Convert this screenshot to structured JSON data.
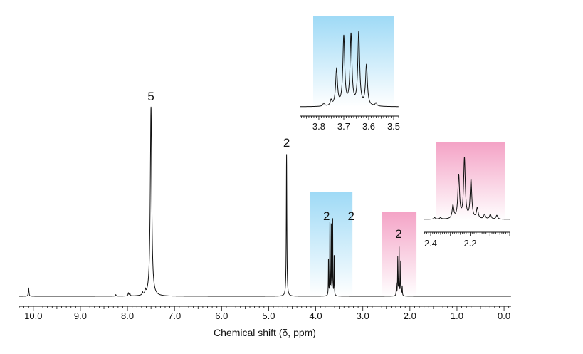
{
  "chart_data": [
    {
      "type": "line",
      "xlabel": "Chemical shift (δ, ppm)",
      "xlim": [
        10.3,
        -0.15
      ],
      "x_reversed": true,
      "x_ticks": [
        "10.0",
        "9.0",
        "8.0",
        "7.0",
        "6.0",
        "5.0",
        "4.0",
        "3.0",
        "2.0",
        "1.0",
        "0.0"
      ],
      "grid": false,
      "peaks": [
        {
          "ppm": 10.1,
          "intensity": 4.5,
          "width": 0.008
        },
        {
          "ppm": 8.25,
          "intensity": 0.8,
          "width": 0.01
        },
        {
          "ppm": 7.98,
          "intensity": 1.6,
          "width": 0.01
        },
        {
          "ppm": 7.95,
          "intensity": 1.2,
          "width": 0.01
        },
        {
          "ppm": 7.68,
          "intensity": 1.4,
          "width": 0.01
        },
        {
          "ppm": 7.62,
          "intensity": 2.2,
          "width": 0.01
        },
        {
          "ppm": 7.5,
          "intensity": 100,
          "width": 0.018
        },
        {
          "ppm": 4.62,
          "intensity": 75,
          "width": 0.007
        },
        {
          "ppm": 3.729,
          "intensity": 20,
          "width": 0.004
        },
        {
          "ppm": 3.7,
          "intensity": 38,
          "width": 0.004
        },
        {
          "ppm": 3.671,
          "intensity": 39,
          "width": 0.004
        },
        {
          "ppm": 3.64,
          "intensity": 40,
          "width": 0.004
        },
        {
          "ppm": 3.609,
          "intensity": 22,
          "width": 0.004
        },
        {
          "ppm": 2.287,
          "intensity": 6,
          "width": 0.005
        },
        {
          "ppm": 2.258,
          "intensity": 20,
          "width": 0.005
        },
        {
          "ppm": 2.229,
          "intensity": 26,
          "width": 0.005
        },
        {
          "ppm": 2.196,
          "intensity": 18,
          "width": 0.005
        },
        {
          "ppm": 2.164,
          "intensity": 5,
          "width": 0.005
        }
      ],
      "integration_labels": [
        {
          "ppm": 7.5,
          "label": "5"
        },
        {
          "ppm": 4.62,
          "label": "2"
        },
        {
          "ppm": 3.77,
          "label": "2"
        },
        {
          "ppm": 3.25,
          "label": "2"
        },
        {
          "ppm": 2.24,
          "label": "2"
        }
      ],
      "highlight_regions": [
        {
          "from": 4.12,
          "to": 3.22,
          "color": "#9fdaf6"
        },
        {
          "from": 2.6,
          "to": 1.86,
          "color": "#f4a3c6"
        }
      ]
    },
    {
      "type": "line",
      "inset": true,
      "xlim": [
        3.877,
        3.48
      ],
      "x_ticks": [
        "3.8",
        "3.7",
        "3.6",
        "3.5"
      ],
      "highlight_color": "#9fdaf6",
      "peaks": [
        {
          "ppm": 3.78,
          "intensity": 4,
          "width": 0.004
        },
        {
          "ppm": 3.751,
          "intensity": 7,
          "width": 0.004
        },
        {
          "ppm": 3.729,
          "intensity": 46,
          "width": 0.0045
        },
        {
          "ppm": 3.7,
          "intensity": 88,
          "width": 0.0045
        },
        {
          "ppm": 3.671,
          "intensity": 90,
          "width": 0.0045
        },
        {
          "ppm": 3.64,
          "intensity": 93,
          "width": 0.0045
        },
        {
          "ppm": 3.609,
          "intensity": 52,
          "width": 0.0045
        },
        {
          "ppm": 3.571,
          "intensity": 4,
          "width": 0.004
        }
      ]
    },
    {
      "type": "line",
      "inset": true,
      "xlim": [
        2.436,
        2.0
      ],
      "x_ticks": [
        "2.4",
        "2.2"
      ],
      "highlight_color": "#f4a3c6",
      "peaks": [
        {
          "ppm": 2.38,
          "intensity": 2,
          "width": 0.005
        },
        {
          "ppm": 2.35,
          "intensity": 2,
          "width": 0.005
        },
        {
          "ppm": 2.287,
          "intensity": 17,
          "width": 0.005
        },
        {
          "ppm": 2.258,
          "intensity": 56,
          "width": 0.005
        },
        {
          "ppm": 2.229,
          "intensity": 78,
          "width": 0.005
        },
        {
          "ppm": 2.196,
          "intensity": 50,
          "width": 0.005
        },
        {
          "ppm": 2.164,
          "intensity": 14,
          "width": 0.005
        },
        {
          "ppm": 2.127,
          "intensity": 6,
          "width": 0.005
        },
        {
          "ppm": 2.098,
          "intensity": 6,
          "width": 0.005
        },
        {
          "ppm": 2.065,
          "intensity": 5,
          "width": 0.005
        }
      ]
    }
  ]
}
